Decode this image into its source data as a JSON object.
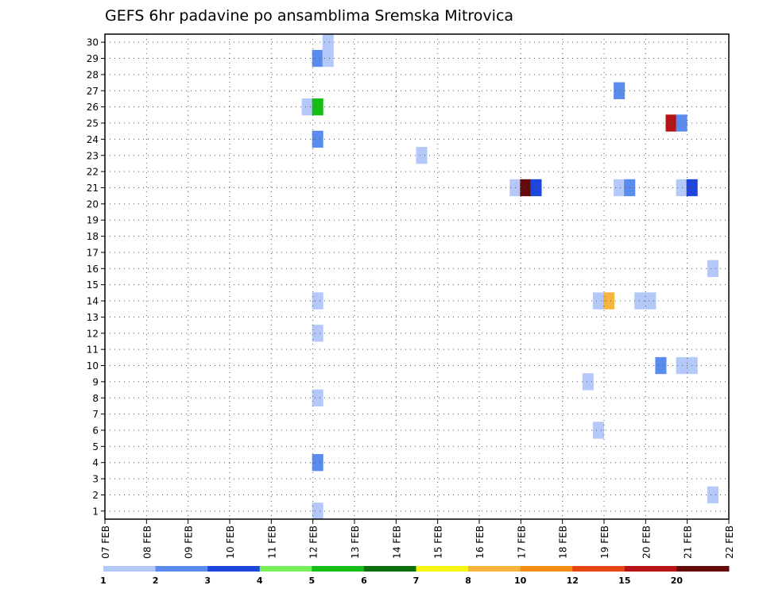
{
  "chart_data": {
    "type": "heatmap",
    "title": "GEFS 6hr padavine po ansamblima Sremska Mitrovica",
    "xlabel": "",
    "ylabel": "",
    "x_ticks": [
      "07 FEB",
      "08 FEB",
      "09 FEB",
      "10 FEB",
      "11 FEB",
      "12 FEB",
      "13 FEB",
      "14 FEB",
      "15 FEB",
      "16 FEB",
      "17 FEB",
      "18 FEB",
      "19 FEB",
      "20 FEB",
      "21 FEB",
      "22 FEB"
    ],
    "xlim": [
      0,
      15
    ],
    "y_ticks": [
      "1",
      "2",
      "3",
      "4",
      "5",
      "6",
      "7",
      "8",
      "9",
      "10",
      "11",
      "12",
      "13",
      "14",
      "15",
      "16",
      "17",
      "18",
      "19",
      "20",
      "21",
      "22",
      "23",
      "24",
      "25",
      "26",
      "27",
      "28",
      "29",
      "30"
    ],
    "ylim": [
      0,
      30
    ],
    "grid": true,
    "legend_position": "bottom",
    "legend": {
      "thresholds": [
        "1",
        "2",
        "3",
        "4",
        "5",
        "6",
        "7",
        "8",
        "10",
        "12",
        "15",
        "20"
      ],
      "colors": [
        "#b4c8fa",
        "#5a8cf0",
        "#1e46dc",
        "#78f05a",
        "#14be14",
        "#0a6e0a",
        "#f5f514",
        "#f5b43c",
        "#f58c14",
        "#e64614",
        "#b41414",
        "#640a0a"
      ]
    },
    "cells": [
      {
        "day": 5.0,
        "member": 29,
        "level": 2
      },
      {
        "day": 5.25,
        "member": 29,
        "level": 1
      },
      {
        "day": 5.25,
        "member": 30,
        "level": 1
      },
      {
        "day": 4.75,
        "member": 26,
        "level": 1
      },
      {
        "day": 5.0,
        "member": 26,
        "level": 5
      },
      {
        "day": 5.0,
        "member": 24,
        "level": 2
      },
      {
        "day": 5.0,
        "member": 14,
        "level": 1
      },
      {
        "day": 5.0,
        "member": 12,
        "level": 1
      },
      {
        "day": 5.0,
        "member": 8,
        "level": 1
      },
      {
        "day": 5.0,
        "member": 4,
        "level": 2
      },
      {
        "day": 5.0,
        "member": 1,
        "level": 1
      },
      {
        "day": 7.5,
        "member": 23,
        "level": 1
      },
      {
        "day": 9.75,
        "member": 21,
        "level": 1
      },
      {
        "day": 10.0,
        "member": 21,
        "level": 12
      },
      {
        "day": 10.25,
        "member": 21,
        "level": 3
      },
      {
        "day": 12.25,
        "member": 27,
        "level": 2
      },
      {
        "day": 12.25,
        "member": 21,
        "level": 1
      },
      {
        "day": 12.5,
        "member": 21,
        "level": 2
      },
      {
        "day": 13.5,
        "member": 25,
        "level": 11
      },
      {
        "day": 13.75,
        "member": 25,
        "level": 2
      },
      {
        "day": 13.75,
        "member": 21,
        "level": 1
      },
      {
        "day": 14.0,
        "member": 21,
        "level": 3
      },
      {
        "day": 14.5,
        "member": 16,
        "level": 1
      },
      {
        "day": 11.75,
        "member": 14,
        "level": 1
      },
      {
        "day": 12.0,
        "member": 14,
        "level": 8
      },
      {
        "day": 12.75,
        "member": 14,
        "level": 1
      },
      {
        "day": 13.0,
        "member": 14,
        "level": 1
      },
      {
        "day": 13.25,
        "member": 10,
        "level": 2
      },
      {
        "day": 13.75,
        "member": 10,
        "level": 1
      },
      {
        "day": 14.0,
        "member": 10,
        "level": 1
      },
      {
        "day": 11.5,
        "member": 9,
        "level": 1
      },
      {
        "day": 11.75,
        "member": 6,
        "level": 1
      },
      {
        "day": 14.5,
        "member": 2,
        "level": 1
      }
    ]
  }
}
